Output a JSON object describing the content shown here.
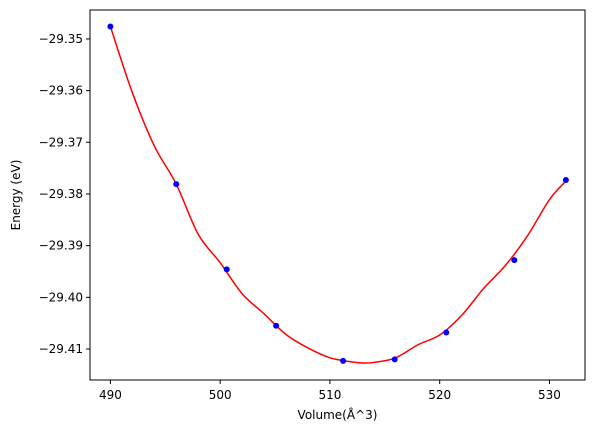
{
  "chart_data": {
    "type": "scatter",
    "title": "",
    "xlabel": "Volume(Å^3)",
    "ylabel": "Energy (eV)",
    "xlim": [
      488.14,
      533.24
    ],
    "ylim": [
      -29.416,
      -29.3444
    ],
    "xticks": [
      {
        "value": 490,
        "label": "490"
      },
      {
        "value": 500,
        "label": "500"
      },
      {
        "value": 510,
        "label": "510"
      },
      {
        "value": 520,
        "label": "520"
      },
      {
        "value": 530,
        "label": "530"
      }
    ],
    "yticks": [
      {
        "value": -29.35,
        "label": "−29.35"
      },
      {
        "value": -29.36,
        "label": "−29.36"
      },
      {
        "value": -29.37,
        "label": "−29.37"
      },
      {
        "value": -29.38,
        "label": "−29.38"
      },
      {
        "value": -29.39,
        "label": "−29.39"
      },
      {
        "value": -29.4,
        "label": "−29.40"
      },
      {
        "value": -29.41,
        "label": "−29.41"
      }
    ],
    "grid": false,
    "series": [
      {
        "kind": "points",
        "color": "#0000ff",
        "marker": "circle",
        "x": [
          490.0,
          496.0,
          500.6,
          505.1,
          511.2,
          515.9,
          520.6,
          526.8,
          531.5
        ],
        "y": [
          -29.3476,
          -29.3781,
          -29.3946,
          -29.4055,
          -29.4123,
          -29.412,
          -29.4068,
          -29.3928,
          -29.3773
        ]
      },
      {
        "kind": "fit-curve",
        "color": "#ff0000",
        "x": [
          490.0,
          492.0,
          494.0,
          496.0,
          498.0,
          500.0,
          502.0,
          504.0,
          506.0,
          508.0,
          510.0,
          512.0,
          513.0,
          514.0,
          516.0,
          518.0,
          520.0,
          522.0,
          524.0,
          526.0,
          528.0,
          530.0,
          531.5
        ],
        "y": [
          -29.3476,
          -29.3604,
          -29.3707,
          -29.3781,
          -29.3878,
          -29.3933,
          -29.3993,
          -29.4032,
          -29.4072,
          -29.4098,
          -29.4117,
          -29.4125,
          -29.4127,
          -29.4126,
          -29.4117,
          -29.4092,
          -29.4073,
          -29.4035,
          -29.3983,
          -29.3938,
          -29.3881,
          -29.3811,
          -29.3775
        ]
      }
    ]
  }
}
